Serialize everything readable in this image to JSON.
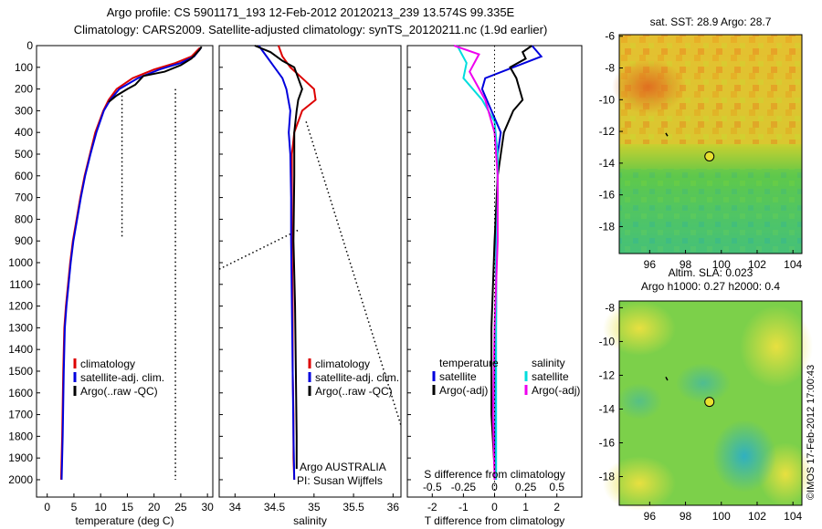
{
  "title": {
    "line1": "Argo profile: CS 5901171_193 12-Feb-2012 20120213_239 13.574S 99.335E",
    "line2": "Climatology: CARS2009. Satellite-adjusted climatology: synTS_20120211.nc (1.9d earlier)"
  },
  "stamp": "©IMOS 17-Feb-2012 17:00:43",
  "colors": {
    "climatology": "#dd0000",
    "satellite": "#0000dd",
    "argo": "#000000",
    "satellite_s": "#00dddd",
    "argo_s": "#ee00ee"
  },
  "depth_ticks": [
    0,
    100,
    200,
    300,
    400,
    500,
    600,
    700,
    800,
    900,
    1000,
    1100,
    1200,
    1300,
    1400,
    1500,
    1600,
    1700,
    1800,
    1900,
    2000
  ],
  "chart_data": [
    {
      "type": "line",
      "name": "temperature-profile",
      "xlabel": "temperature (deg C)",
      "ylabel": "",
      "xlim": [
        -2,
        31
      ],
      "ylim": [
        2080,
        0
      ],
      "xticks": [
        0,
        5,
        10,
        15,
        20,
        25,
        30
      ],
      "legend": [
        "climatology",
        "satellite-adj. clim.",
        "Argo(..raw -QC)"
      ],
      "series": [
        {
          "name": "climatology",
          "color": "#dd0000",
          "x": [
            28.6,
            27,
            24,
            20,
            16,
            13,
            11.5,
            10.5,
            9,
            8,
            7,
            6.2,
            5.5,
            4.8,
            4.3,
            3.9,
            3.5,
            3.2,
            3,
            2.8,
            2.6
          ],
          "y": [
            10,
            50,
            80,
            110,
            150,
            200,
            250,
            300,
            400,
            500,
            600,
            700,
            800,
            900,
            1000,
            1100,
            1200,
            1300,
            1500,
            1800,
            2000
          ]
        },
        {
          "name": "satellite-adj. clim.",
          "color": "#0000dd",
          "x": [
            28.8,
            27.5,
            25,
            21,
            17,
            13.5,
            11.8,
            10.6,
            9.2,
            8.1,
            7.1,
            6.3,
            5.6,
            4.9,
            4.4,
            4,
            3.6,
            3.3,
            3.1,
            2.9,
            2.7
          ],
          "y": [
            10,
            50,
            80,
            110,
            150,
            200,
            250,
            300,
            400,
            500,
            600,
            700,
            800,
            900,
            1000,
            1100,
            1200,
            1300,
            1500,
            1800,
            2000
          ]
        },
        {
          "name": "Argo(..raw -QC)",
          "color": "#000000",
          "x": [
            28.9,
            28.5,
            27,
            25,
            22,
            18,
            16.5,
            15,
            13,
            11.5
          ],
          "y": [
            5,
            20,
            60,
            90,
            120,
            140,
            180,
            200,
            230,
            260
          ]
        }
      ],
      "dotted": [
        {
          "x": [
            14,
            14
          ],
          "y": [
            230,
            880
          ]
        },
        {
          "x": [
            24,
            24
          ],
          "y": [
            200,
            2000
          ]
        }
      ]
    },
    {
      "type": "line",
      "name": "salinity-profile",
      "xlabel": "salinity",
      "ylabel": "",
      "xlim": [
        33.8,
        36.1
      ],
      "ylim": [
        2080,
        0
      ],
      "xticks": [
        34,
        34.5,
        35,
        35.5,
        36
      ],
      "legend": [
        "climatology",
        "satellite-adj. clim.",
        "Argo(..raw -QC)"
      ],
      "annotations": [
        "Argo AUSTRALIA",
        "PI: Susan Wijffels"
      ],
      "series": [
        {
          "name": "climatology",
          "color": "#dd0000",
          "x": [
            34.55,
            34.6,
            34.7,
            34.85,
            35.0,
            35.02,
            34.85,
            34.75,
            34.72,
            34.72,
            34.72,
            34.73,
            34.73,
            34.74,
            34.74,
            34.75
          ],
          "y": [
            0,
            50,
            100,
            150,
            200,
            250,
            300,
            400,
            500,
            700,
            900,
            1200,
            1500,
            1700,
            1900,
            2000
          ]
        },
        {
          "name": "satellite-adj. clim.",
          "color": "#0000dd",
          "x": [
            34.3,
            34.4,
            34.5,
            34.6,
            34.65,
            34.7,
            34.68,
            34.7,
            34.71,
            34.71,
            34.72,
            34.73,
            34.74,
            34.75
          ],
          "y": [
            0,
            50,
            100,
            150,
            200,
            300,
            400,
            500,
            700,
            900,
            1200,
            1500,
            1800,
            2000
          ]
        },
        {
          "name": "Argo(..raw -QC)",
          "color": "#000000",
          "x": [
            34.25,
            34.45,
            34.6,
            34.75,
            34.8,
            34.85,
            34.8,
            34.78,
            34.75,
            34.75,
            34.74,
            34.76,
            34.77,
            34.78,
            34.78
          ],
          "y": [
            0,
            30,
            70,
            100,
            150,
            200,
            250,
            300,
            400,
            600,
            900,
            1200,
            1500,
            1800,
            1950
          ]
        }
      ],
      "dotted": [
        {
          "x": [
            34.9,
            36.1
          ],
          "y": [
            350,
            1750
          ]
        },
        {
          "x": [
            33.8,
            34.8
          ],
          "y": [
            1030,
            850
          ]
        }
      ]
    },
    {
      "type": "line",
      "name": "difference-profile",
      "xlabel": "T difference from climatology",
      "xlabel_top": "S difference from climatology",
      "xlim": [
        -2.8,
        2.8
      ],
      "ylim": [
        2080,
        0
      ],
      "xticks": [
        -2,
        -1,
        0,
        1,
        2
      ],
      "xticks_top": [
        "-0.5",
        "-0.25",
        "0",
        "0.25",
        "0.5"
      ],
      "legend_t": [
        "temperature",
        "satellite",
        "Argo(-adj)"
      ],
      "legend_s": [
        "salinity",
        "satellite",
        "Argo(-adj)"
      ],
      "series": [
        {
          "name": "T satellite",
          "color": "#0000dd",
          "x": [
            1.2,
            1.5,
            0.6,
            -0.3,
            -0.4,
            -0.1,
            0.2,
            0.1,
            0.1,
            0.05,
            0.05,
            0.03,
            0.02
          ],
          "y": [
            0,
            50,
            100,
            150,
            200,
            300,
            400,
            500,
            700,
            900,
            1200,
            1600,
            2000
          ]
        },
        {
          "name": "T Argo(-adj)",
          "color": "#000000",
          "x": [
            1.2,
            0.9,
            1.0,
            0.5,
            0.7,
            0.8,
            0.9,
            0.6,
            0.3,
            0.2,
            0.1,
            0.0,
            -0.1,
            -0.1,
            0.0
          ],
          "y": [
            0,
            30,
            60,
            100,
            150,
            200,
            250,
            300,
            400,
            500,
            600,
            900,
            1300,
            1700,
            1950
          ]
        },
        {
          "name": "S satellite",
          "color": "#00dddd",
          "x": [
            -1.2,
            -0.9,
            -1.0,
            -0.4,
            0.0,
            0.1,
            0.1,
            0.05,
            0.05,
            0.05
          ],
          "y": [
            0,
            80,
            150,
            250,
            350,
            500,
            700,
            1000,
            1500,
            2000
          ]
        },
        {
          "name": "S Argo(-adj)",
          "color": "#ee00ee",
          "x": [
            -1.3,
            -0.5,
            -0.8,
            -0.3,
            0.0,
            0.1,
            0.1,
            0.0,
            -0.05,
            0.0
          ],
          "y": [
            0,
            40,
            120,
            250,
            400,
            600,
            900,
            1300,
            1700,
            2000
          ]
        }
      ]
    },
    {
      "type": "heatmap",
      "name": "sst-map",
      "title": "sat. SST: 28.9 Argo: 28.7",
      "xticks": [
        96,
        98,
        100,
        102,
        104
      ],
      "yticks": [
        -6,
        -8,
        -10,
        -12,
        -14,
        -16,
        -18
      ],
      "xlim": [
        94.3,
        104.5
      ],
      "ylim": [
        -19.7,
        -5.9
      ],
      "marker": {
        "lon": 99.335,
        "lat": -13.574
      }
    },
    {
      "type": "heatmap",
      "name": "sla-map",
      "title": "Altim. SLA: 0.023",
      "subtitle": "Argo h1000: 0.27 h2000: 0.4",
      "xticks": [
        96,
        98,
        100,
        102,
        104
      ],
      "yticks": [
        -8,
        -10,
        -12,
        -14,
        -16,
        -18
      ],
      "xlim": [
        94.3,
        104.5
      ],
      "ylim": [
        -19.7,
        -7.6
      ],
      "marker": {
        "lon": 99.335,
        "lat": -13.574
      }
    }
  ]
}
